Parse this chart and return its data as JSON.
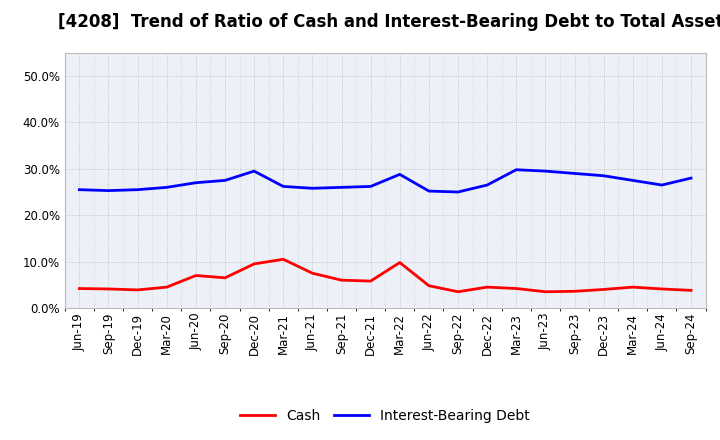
{
  "title": "[4208]  Trend of Ratio of Cash and Interest-Bearing Debt to Total Assets",
  "labels": [
    "Jun-19",
    "Sep-19",
    "Dec-19",
    "Mar-20",
    "Jun-20",
    "Sep-20",
    "Dec-20",
    "Mar-21",
    "Jun-21",
    "Sep-21",
    "Dec-21",
    "Mar-22",
    "Jun-22",
    "Sep-22",
    "Dec-22",
    "Mar-23",
    "Jun-23",
    "Sep-23",
    "Dec-23",
    "Mar-24",
    "Jun-24",
    "Sep-24"
  ],
  "cash": [
    4.2,
    4.1,
    3.9,
    4.5,
    7.0,
    6.5,
    9.5,
    10.5,
    7.5,
    6.0,
    5.8,
    9.8,
    4.8,
    3.5,
    4.5,
    4.2,
    3.5,
    3.6,
    4.0,
    4.5,
    4.1,
    3.8
  ],
  "interest_bearing_debt": [
    25.5,
    25.3,
    25.5,
    26.0,
    27.0,
    27.5,
    29.5,
    26.2,
    25.8,
    26.0,
    26.2,
    28.8,
    25.2,
    25.0,
    26.5,
    29.8,
    29.5,
    29.0,
    28.5,
    27.5,
    26.5,
    28.0
  ],
  "cash_color": "#FF0000",
  "debt_color": "#0000FF",
  "plot_bg_color": "#EEF0F8",
  "fig_bg_color": "#FFFFFF",
  "grid_color": "#AAAAAA",
  "ylim": [
    0.0,
    55.0
  ],
  "yticks": [
    0.0,
    10.0,
    20.0,
    30.0,
    40.0,
    50.0
  ],
  "legend_labels": [
    "Cash",
    "Interest-Bearing Debt"
  ],
  "title_fontsize": 12,
  "axis_fontsize": 8.5,
  "legend_fontsize": 10,
  "line_width": 2.0
}
